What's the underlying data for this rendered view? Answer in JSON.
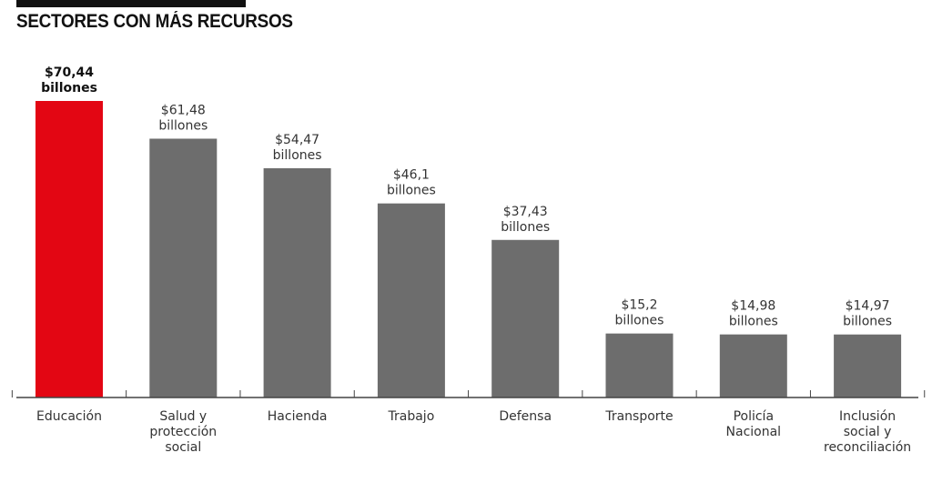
{
  "title": "SECTORES CON MÁS RECURSOS",
  "colors": {
    "highlight": "#e30613",
    "bar": "#6d6d6d",
    "axis": "#444444"
  },
  "chart_data": {
    "type": "bar",
    "title": "SECTORES CON MÁS RECURSOS",
    "xlabel": "",
    "ylabel": "",
    "ylim": [
      0,
      70.44
    ],
    "grid": false,
    "categories": [
      [
        "Educación"
      ],
      [
        "Salud y",
        "protección",
        "social"
      ],
      [
        "Hacienda"
      ],
      [
        "Trabajo"
      ],
      [
        "Defensa"
      ],
      [
        "Transporte"
      ],
      [
        "Policía",
        "Nacional"
      ],
      [
        "Inclusión",
        "social y",
        "reconciliación"
      ]
    ],
    "values": [
      70.44,
      61.48,
      54.47,
      46.1,
      37.43,
      15.2,
      14.98,
      14.97
    ],
    "value_labels": [
      [
        "$70,44",
        "billones"
      ],
      [
        "$61,48",
        "billones"
      ],
      [
        "$54,47",
        "billones"
      ],
      [
        "$46,1",
        "billones"
      ],
      [
        "$37,43",
        "billones"
      ],
      [
        "$15,2",
        "billones"
      ],
      [
        "$14,98",
        "billones"
      ],
      [
        "$14,97",
        "billones"
      ]
    ],
    "highlighted_index": 0
  }
}
